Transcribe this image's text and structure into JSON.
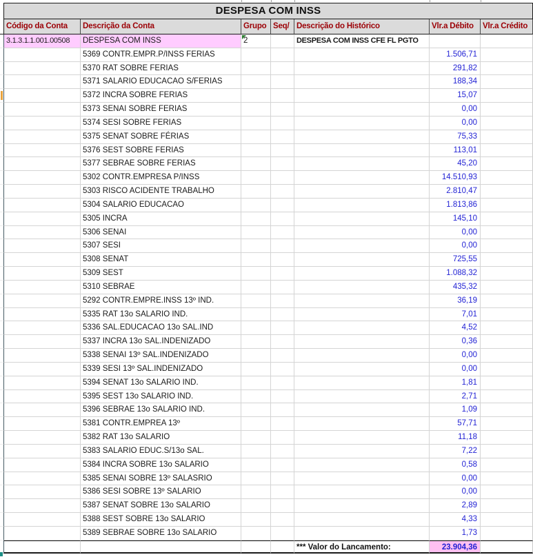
{
  "title": "DESPESA COM INSS",
  "columns": [
    "Código da Conta",
    "Descrição da Conta",
    "Grupo",
    "Seq/",
    "Descrição do Histórico",
    "Vlr.a Débito",
    "Vlr.a Crédito"
  ],
  "rows": [
    {
      "code": "3.1.3.1.1.001.00508",
      "desc": "DESPESA COM INSS",
      "grupo": "2",
      "seq": "",
      "historico": "DESPESA COM INSS CFE FL PGTO",
      "debito": "",
      "credito": "",
      "highlight": true,
      "error_marker": true
    },
    {
      "desc": "5369 CONTR.EMPR.P/INSS FERIAS",
      "debito": "1.506,71"
    },
    {
      "desc": "5370 RAT SOBRE FERIAS",
      "debito": "291,82"
    },
    {
      "desc": "5371 SALARIO EDUCACAO S/FERIAS",
      "debito": "188,34"
    },
    {
      "desc": "5372 INCRA SOBRE FERIAS",
      "debito": "15,07",
      "gutter_marker": true
    },
    {
      "desc": "5373 SENAI SOBRE FERIAS",
      "debito": "0,00"
    },
    {
      "desc": "5374 SESI SOBRE FERIAS",
      "debito": "0,00"
    },
    {
      "desc": "5375 SENAT SOBRE FÉRIAS",
      "debito": "75,33"
    },
    {
      "desc": "5376 SEST SOBRE FERIAS",
      "debito": "113,01"
    },
    {
      "desc": "5377 SEBRAE SOBRE FERIAS",
      "debito": "45,20"
    },
    {
      "desc": "5302 CONTR.EMPRESA P/INSS",
      "debito": "14.510,93"
    },
    {
      "desc": "5303 RISCO ACIDENTE TRABALHO",
      "debito": "2.810,47"
    },
    {
      "desc": "5304 SALARIO EDUCACAO",
      "debito": "1.813,86"
    },
    {
      "desc": "5305 INCRA",
      "debito": "145,10"
    },
    {
      "desc": "5306 SENAI",
      "debito": "0,00"
    },
    {
      "desc": "5307 SESI",
      "debito": "0,00"
    },
    {
      "desc": "5308 SENAT",
      "debito": "725,55"
    },
    {
      "desc": "5309 SEST",
      "debito": "1.088,32"
    },
    {
      "desc": "5310 SEBRAE",
      "debito": "435,32"
    },
    {
      "desc": "5292 CONTR.EMPRE.INSS 13º IND.",
      "debito": "36,19"
    },
    {
      "desc": "5335 RAT 13o SALARIO IND.",
      "debito": "7,01"
    },
    {
      "desc": "5336 SAL.EDUCACAO 13o SAL.IND",
      "debito": "4,52"
    },
    {
      "desc": "5337 INCRA 13o SAL.INDENIZADO",
      "debito": "0,36"
    },
    {
      "desc": "5338 SENAI 13º SAL.INDENIZADO",
      "debito": "0,00"
    },
    {
      "desc": "5339 SESI 13º SAL.INDENIZADO",
      "debito": "0,00"
    },
    {
      "desc": "5394 SENAT 13o SALARIO IND.",
      "debito": "1,81"
    },
    {
      "desc": "5395 SEST 13o SALARIO IND.",
      "debito": "2,71"
    },
    {
      "desc": "5396 SEBRAE 13o SALARIO IND.",
      "debito": "1,09"
    },
    {
      "desc": "5381 CONTR.EMPREA 13º",
      "debito": "57,71"
    },
    {
      "desc": "5382 RAT 13o SALARIO",
      "debito": "11,18"
    },
    {
      "desc": "5383 SALARIO EDUC.S/13o SAL.",
      "debito": "7,22"
    },
    {
      "desc": "5384 INCRA SOBRE 13o SALARIO",
      "debito": "0,58"
    },
    {
      "desc": "5385 SENAI SOBRE 13º SALASRIO",
      "debito": "0,00"
    },
    {
      "desc": "5386 SESI SOBRE 13º SALARIO",
      "debito": "0,00"
    },
    {
      "desc": "5387 SENAT SOBRE 13o SALARIO",
      "debito": "2,89"
    },
    {
      "desc": "5388 SEST SOBRE 13o SALARIO",
      "debito": "4,33"
    },
    {
      "desc": "5389 SEBRAE SOBRE 13o SALARIO",
      "debito": "1,73"
    },
    {
      "historico": "*** Valor do Lancamento:",
      "debito": "23.904,36",
      "total": true
    }
  ],
  "colors": {
    "accent_red": "#9C0006",
    "value_blue": "#2222D4",
    "highlight_pink": "#FFCCFF",
    "total_pink": "#FFC0F2",
    "header_bg": "#DBDBDB",
    "title_bg": "#D9D9D9",
    "marker_orange": "#E8A33D",
    "border_dark": "#1a1a1a",
    "grid_line": "#D4D4D4",
    "outer_blue": "#455A64"
  }
}
